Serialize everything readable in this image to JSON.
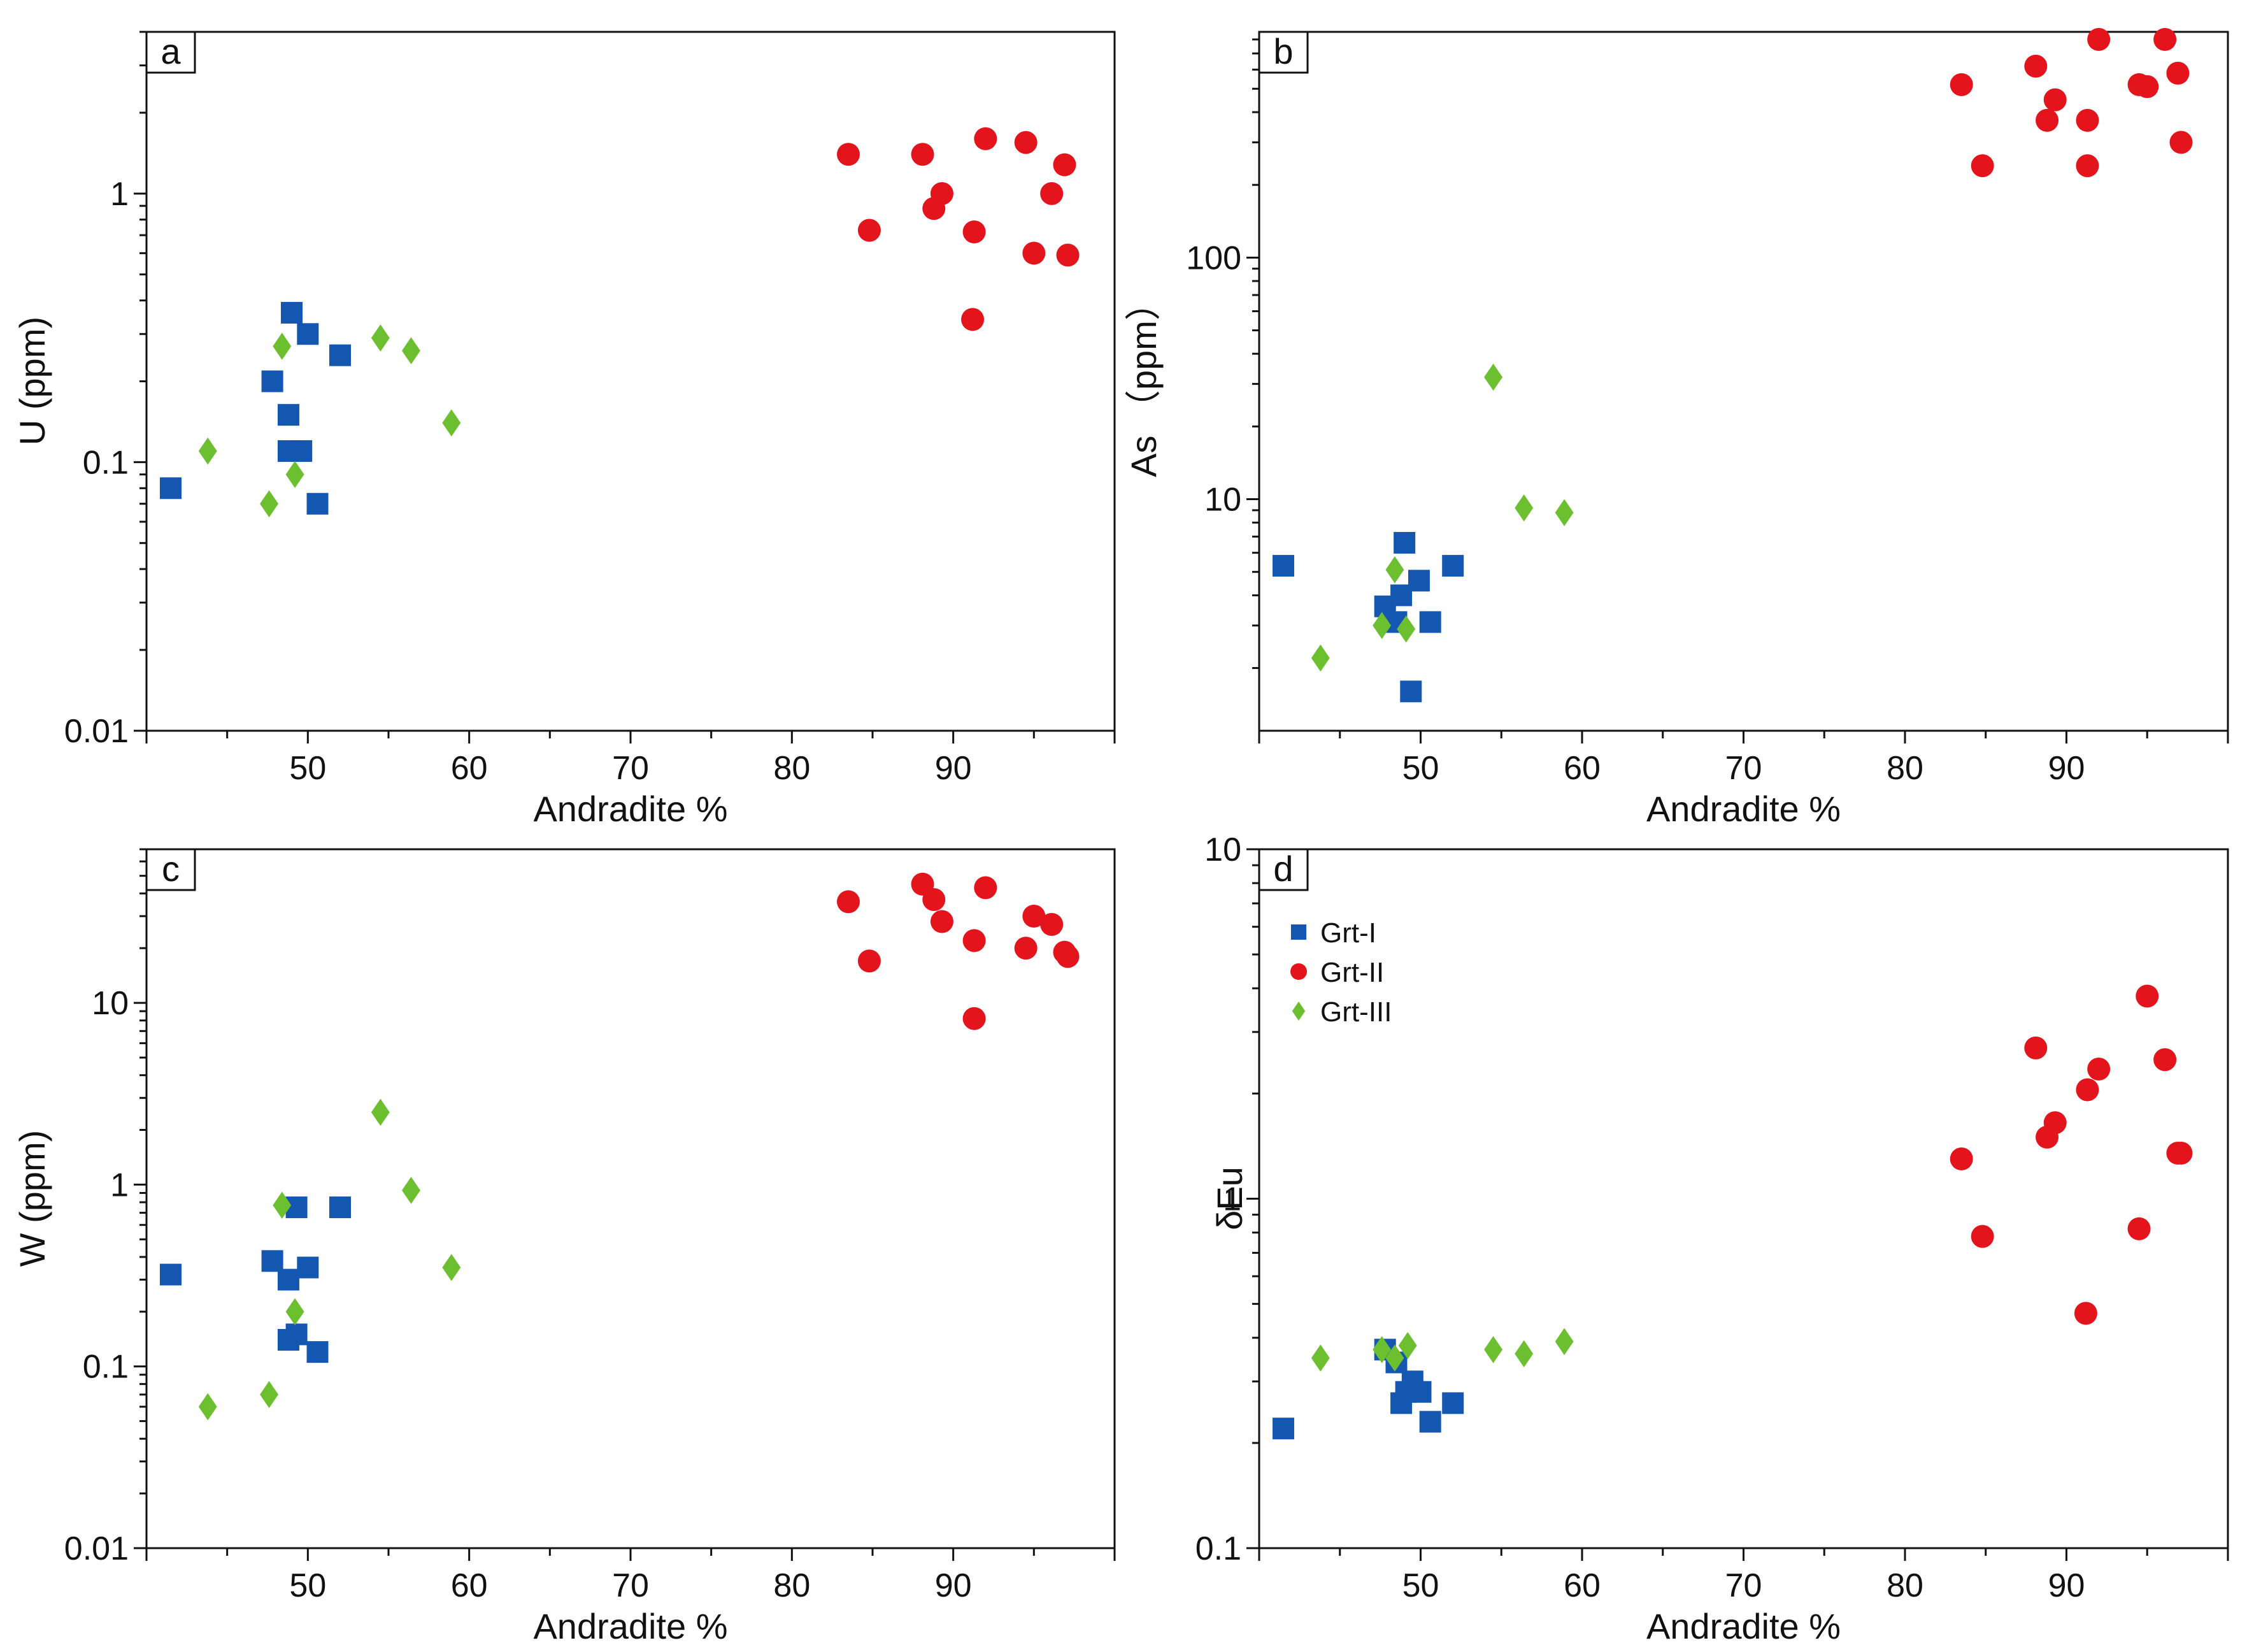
{
  "colors": {
    "grt1": "#1457b0",
    "grt2": "#e3141c",
    "grt3": "#6cbf2e",
    "axis": "#111111"
  },
  "legend": [
    {
      "name": "Grt-I",
      "marker": "square",
      "color": "#1457b0"
    },
    {
      "name": "Grt-II",
      "marker": "circle",
      "color": "#e3141c"
    },
    {
      "name": "Grt-III",
      "marker": "diamond",
      "color": "#6cbf2e"
    }
  ],
  "chart_data": [
    {
      "panel": "a",
      "type": "scatter",
      "xlabel": "Andradite %",
      "ylabel": "U (ppm)",
      "yscale": "log",
      "xlim": [
        40,
        100
      ],
      "ylim": [
        0.01,
        4.0
      ],
      "xticks": [
        50,
        60,
        70,
        80,
        90
      ],
      "yticks": [
        0.01,
        0.1,
        1
      ],
      "ytick_labels": [
        "0.01",
        "0.1",
        "1"
      ],
      "series": [
        {
          "name": "Grt-I",
          "points": [
            [
              41.5,
              0.08
            ],
            [
              47.8,
              0.2
            ],
            [
              48.8,
              0.15
            ],
            [
              49.0,
              0.36
            ],
            [
              48.8,
              0.11
            ],
            [
              49.6,
              0.11
            ],
            [
              50.0,
              0.3
            ],
            [
              50.6,
              0.07
            ],
            [
              52.0,
              0.25
            ]
          ]
        },
        {
          "name": "Grt-II",
          "points": [
            [
              83.5,
              1.4
            ],
            [
              84.8,
              0.73
            ],
            [
              88.1,
              1.4
            ],
            [
              88.8,
              0.88
            ],
            [
              89.3,
              1.0
            ],
            [
              91.3,
              0.72
            ],
            [
              91.2,
              0.34
            ],
            [
              92.0,
              1.6
            ],
            [
              94.5,
              1.55
            ],
            [
              95.0,
              0.6
            ],
            [
              96.1,
              1.0
            ],
            [
              96.9,
              1.28
            ],
            [
              97.1,
              0.59
            ]
          ]
        },
        {
          "name": "Grt-III",
          "points": [
            [
              43.8,
              0.11
            ],
            [
              47.6,
              0.07
            ],
            [
              48.4,
              0.27
            ],
            [
              49.2,
              0.09
            ],
            [
              54.5,
              0.29
            ],
            [
              56.4,
              0.26
            ],
            [
              58.9,
              0.14
            ]
          ]
        }
      ]
    },
    {
      "panel": "b",
      "type": "scatter",
      "xlabel": "Andradite %",
      "ylabel": "As （ppm）",
      "yscale": "log",
      "xlim": [
        40,
        100
      ],
      "ylim": [
        1.1,
        860
      ],
      "xticks": [
        50,
        60,
        70,
        80,
        90
      ],
      "yticks": [
        10,
        100
      ],
      "ytick_labels": [
        "10",
        "100"
      ],
      "series": [
        {
          "name": "Grt-I",
          "points": [
            [
              41.5,
              5.3
            ],
            [
              47.8,
              3.6
            ],
            [
              48.5,
              3.1
            ],
            [
              48.8,
              4.0
            ],
            [
              49.0,
              6.6
            ],
            [
              49.4,
              1.6
            ],
            [
              49.9,
              4.6
            ],
            [
              50.6,
              3.1
            ],
            [
              52.0,
              5.3
            ]
          ]
        },
        {
          "name": "Grt-II",
          "points": [
            [
              83.5,
              520
            ],
            [
              84.8,
              240
            ],
            [
              88.1,
              620
            ],
            [
              88.8,
              370
            ],
            [
              89.3,
              450
            ],
            [
              91.3,
              240
            ],
            [
              91.3,
              370
            ],
            [
              92.0,
              800
            ],
            [
              94.5,
              520
            ],
            [
              95.0,
              510
            ],
            [
              96.1,
              800
            ],
            [
              96.9,
              580
            ],
            [
              97.1,
              300
            ]
          ]
        },
        {
          "name": "Grt-III",
          "points": [
            [
              43.8,
              2.2
            ],
            [
              47.6,
              3.0
            ],
            [
              48.4,
              5.1
            ],
            [
              49.1,
              2.9
            ],
            [
              54.5,
              32
            ],
            [
              56.4,
              9.2
            ],
            [
              58.9,
              8.8
            ]
          ]
        }
      ]
    },
    {
      "panel": "c",
      "type": "scatter",
      "xlabel": "Andradite %",
      "ylabel": "W (ppm)",
      "yscale": "log",
      "xlim": [
        40,
        100
      ],
      "ylim": [
        0.01,
        70
      ],
      "xticks": [
        50,
        60,
        70,
        80,
        90
      ],
      "yticks": [
        0.01,
        0.1,
        1,
        10
      ],
      "ytick_labels": [
        "0.01",
        "0.1",
        "1",
        "10"
      ],
      "series": [
        {
          "name": "Grt-I",
          "points": [
            [
              41.5,
              0.32
            ],
            [
              47.8,
              0.38
            ],
            [
              48.8,
              0.3
            ],
            [
              48.8,
              0.14
            ],
            [
              49.3,
              0.15
            ],
            [
              49.3,
              0.75
            ],
            [
              50.0,
              0.35
            ],
            [
              50.6,
              0.12
            ],
            [
              52.0,
              0.75
            ]
          ]
        },
        {
          "name": "Grt-II",
          "points": [
            [
              83.5,
              36
            ],
            [
              84.8,
              17
            ],
            [
              88.1,
              45
            ],
            [
              88.8,
              37
            ],
            [
              89.3,
              28
            ],
            [
              91.3,
              22
            ],
            [
              91.3,
              8.2
            ],
            [
              92.0,
              43
            ],
            [
              94.5,
              20
            ],
            [
              95.0,
              30
            ],
            [
              96.1,
              27
            ],
            [
              96.9,
              19
            ],
            [
              97.1,
              18
            ]
          ]
        },
        {
          "name": "Grt-III",
          "points": [
            [
              43.8,
              0.06
            ],
            [
              47.6,
              0.07
            ],
            [
              48.4,
              0.77
            ],
            [
              49.2,
              0.2
            ],
            [
              54.5,
              2.5
            ],
            [
              56.4,
              0.93
            ],
            [
              58.9,
              0.35
            ]
          ]
        }
      ]
    },
    {
      "panel": "d",
      "type": "scatter",
      "xlabel": "Andradite %",
      "ylabel": "δEu",
      "yscale": "log",
      "xlim": [
        40,
        100
      ],
      "ylim": [
        0.1,
        10
      ],
      "xticks": [
        50,
        60,
        70,
        80,
        90
      ],
      "yticks": [
        0.1,
        1,
        10
      ],
      "ytick_labels": [
        "0.1",
        "1",
        "10"
      ],
      "series": [
        {
          "name": "Grt-I",
          "points": [
            [
              41.5,
              0.22
            ],
            [
              47.8,
              0.37
            ],
            [
              48.5,
              0.34
            ],
            [
              48.8,
              0.26
            ],
            [
              49.1,
              0.28
            ],
            [
              49.5,
              0.3
            ],
            [
              50.0,
              0.28
            ],
            [
              50.6,
              0.23
            ],
            [
              52.0,
              0.26
            ]
          ]
        },
        {
          "name": "Grt-II",
          "points": [
            [
              83.5,
              1.3
            ],
            [
              84.8,
              0.78
            ],
            [
              88.1,
              2.7
            ],
            [
              88.8,
              1.5
            ],
            [
              89.3,
              1.65
            ],
            [
              91.3,
              2.05
            ],
            [
              91.2,
              0.47
            ],
            [
              92.0,
              2.35
            ],
            [
              94.5,
              0.82
            ],
            [
              95.0,
              3.8
            ],
            [
              96.1,
              2.5
            ],
            [
              96.9,
              1.35
            ],
            [
              97.1,
              1.35
            ]
          ]
        },
        {
          "name": "Grt-III",
          "points": [
            [
              43.8,
              0.35
            ],
            [
              47.6,
              0.37
            ],
            [
              48.4,
              0.35
            ],
            [
              49.2,
              0.38
            ],
            [
              54.5,
              0.37
            ],
            [
              56.4,
              0.36
            ],
            [
              58.9,
              0.39
            ]
          ]
        }
      ]
    }
  ]
}
